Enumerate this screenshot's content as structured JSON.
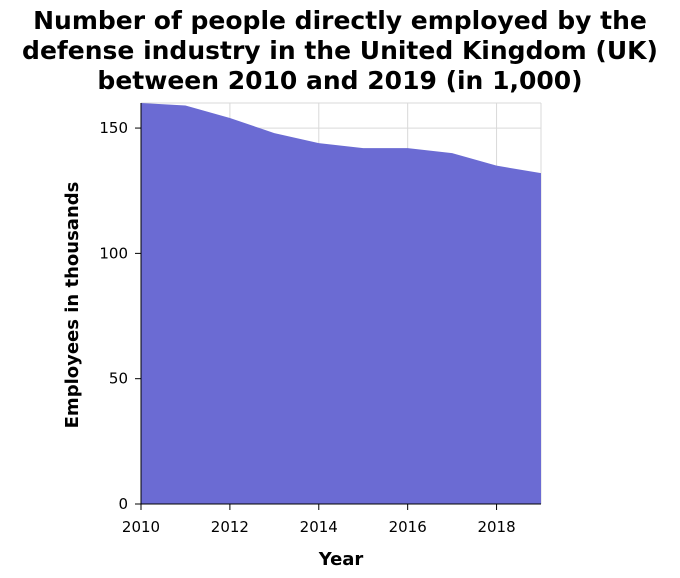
{
  "chart_data": {
    "type": "area",
    "title_lines": [
      "Number of people directly employed by the",
      "defense industry in the United Kingdom (UK)",
      "between 2010 and 2019 (in 1,000)"
    ],
    "xlabel": "Year",
    "ylabel": "Employees in thousands",
    "x": [
      2010,
      2011,
      2012,
      2013,
      2014,
      2015,
      2016,
      2017,
      2018,
      2019
    ],
    "values": [
      160,
      159,
      154,
      148,
      144,
      142,
      142,
      140,
      135,
      132
    ],
    "xlim": [
      2010,
      2019
    ],
    "ylim": [
      0,
      160
    ],
    "xticks": [
      2010,
      2012,
      2014,
      2016,
      2018
    ],
    "yticks": [
      0,
      50,
      100,
      150
    ],
    "grid": true,
    "colors": {
      "fill": "#6b6bd3",
      "grid": "#d9d9d9",
      "axis": "#000000"
    }
  }
}
